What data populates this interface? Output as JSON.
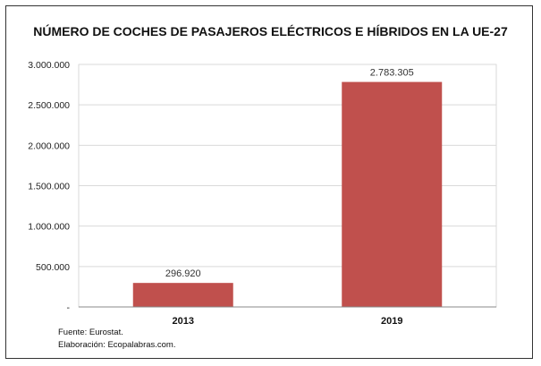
{
  "chart_data": {
    "type": "bar",
    "title": "NÚMERO DE COCHES DE PASAJEROS ELÉCTRICOS E HÍBRIDOS EN LA UE-27",
    "categories": [
      "2013",
      "2019"
    ],
    "values": [
      296920,
      2783305
    ],
    "data_labels": [
      "296.920",
      "2.783.305"
    ],
    "ylim": [
      0,
      3000000
    ],
    "yticks": [
      0,
      500000,
      1000000,
      1500000,
      2000000,
      2500000,
      3000000
    ],
    "ytick_labels": [
      "-",
      "500.000",
      "1.000.000",
      "1.500.000",
      "2.000.000",
      "2.500.000",
      "3.000.000"
    ],
    "grid": true,
    "bar_color": "#C0504D",
    "xlabel": "",
    "ylabel": ""
  },
  "footer": {
    "source": "Fuente: Eurostat.",
    "author": "Elaboración: Ecopalabras.com."
  }
}
